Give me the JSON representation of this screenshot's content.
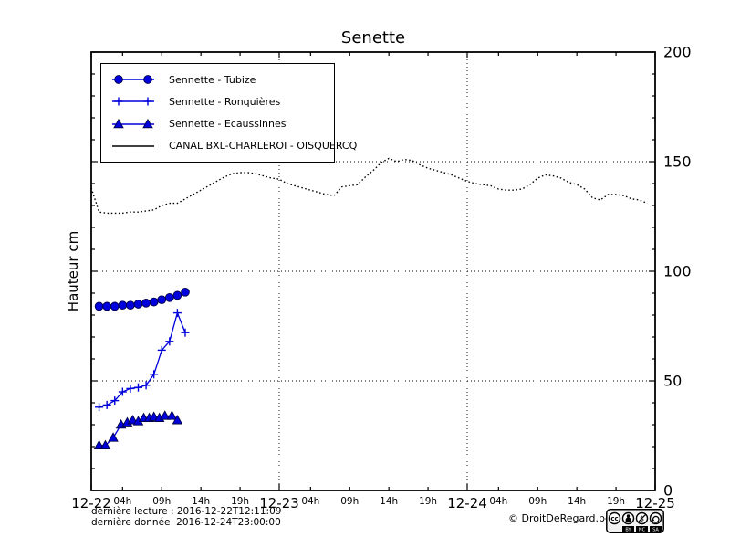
{
  "chart_data": {
    "type": "line",
    "title": "Senette",
    "ylabel": "Hauteur cm",
    "ylim": [
      0,
      200
    ],
    "x_range_hours": [
      0,
      72
    ],
    "grid": "dotted",
    "legend_position": "upper-left",
    "x_ticks_major": [
      {
        "h": 0,
        "label": "12-22"
      },
      {
        "h": 24,
        "label": "12-23"
      },
      {
        "h": 48,
        "label": "12-24"
      },
      {
        "h": 72,
        "label": "12-25"
      }
    ],
    "x_ticks_minor": [
      {
        "h": 4,
        "label": "04h"
      },
      {
        "h": 9,
        "label": "09h"
      },
      {
        "h": 14,
        "label": "14h"
      },
      {
        "h": 19,
        "label": "19h"
      },
      {
        "h": 28,
        "label": "04h"
      },
      {
        "h": 33,
        "label": "09h"
      },
      {
        "h": 38,
        "label": "14h"
      },
      {
        "h": 43,
        "label": "19h"
      },
      {
        "h": 52,
        "label": "04h"
      },
      {
        "h": 57,
        "label": "09h"
      },
      {
        "h": 62,
        "label": "14h"
      },
      {
        "h": 67,
        "label": "19h"
      }
    ],
    "y_ticks_major": [
      0,
      50,
      100,
      150,
      200
    ],
    "y_minor_step": 10,
    "grid_x_hours": [
      24,
      48
    ],
    "grid_y_values": [
      50,
      100,
      150
    ],
    "series": [
      {
        "name": "Sennette - Tubize",
        "color": "#0000dd",
        "marker": "circle",
        "line": "solid",
        "points": [
          [
            1,
            84
          ],
          [
            2,
            84
          ],
          [
            3,
            84
          ],
          [
            4,
            84.5
          ],
          [
            5,
            84.5
          ],
          [
            6,
            85
          ],
          [
            7,
            85.5
          ],
          [
            8,
            86
          ],
          [
            9,
            87
          ],
          [
            10,
            88
          ],
          [
            11,
            89
          ],
          [
            12,
            90.5
          ]
        ]
      },
      {
        "name": "Sennette - Ronquières",
        "color": "#0000dd",
        "marker": "plus",
        "line": "solid",
        "points": [
          [
            1,
            38
          ],
          [
            2,
            39
          ],
          [
            3,
            41
          ],
          [
            4,
            45
          ],
          [
            5,
            46.5
          ],
          [
            6,
            47
          ],
          [
            7,
            48
          ],
          [
            8,
            53
          ],
          [
            9,
            64
          ],
          [
            10,
            68
          ],
          [
            11,
            81
          ],
          [
            12,
            72
          ]
        ]
      },
      {
        "name": "Sennette - Ecaussinnes",
        "color": "#0000dd",
        "marker": "triangle",
        "line": "solid",
        "points": [
          [
            1,
            20.5
          ],
          [
            1.8,
            20.5
          ],
          [
            2.8,
            24
          ],
          [
            3.8,
            30
          ],
          [
            4.6,
            31
          ],
          [
            5.3,
            32
          ],
          [
            6,
            31.5
          ],
          [
            6.7,
            33
          ],
          [
            7.4,
            33
          ],
          [
            8,
            33.5
          ],
          [
            8.7,
            33
          ],
          [
            9.4,
            34
          ],
          [
            10.3,
            34
          ],
          [
            11,
            32
          ]
        ]
      },
      {
        "name": "CANAL BXL-CHARLEROI  - OISQUERCQ",
        "color": "#000000",
        "marker": "none",
        "line": "dotted",
        "points": [
          [
            0,
            138
          ],
          [
            1,
            127
          ],
          [
            2,
            126.5
          ],
          [
            3,
            126.5
          ],
          [
            4,
            126.5
          ],
          [
            5,
            127
          ],
          [
            6,
            127
          ],
          [
            7,
            127.5
          ],
          [
            8,
            128
          ],
          [
            9,
            130
          ],
          [
            10,
            131
          ],
          [
            11,
            131
          ],
          [
            12,
            133
          ],
          [
            13,
            135
          ],
          [
            14,
            137
          ],
          [
            15,
            139
          ],
          [
            16,
            141
          ],
          [
            17,
            143
          ],
          [
            18,
            144.5
          ],
          [
            19,
            145
          ],
          [
            20,
            145
          ],
          [
            21,
            144.5
          ],
          [
            22,
            143.5
          ],
          [
            23,
            142.5
          ],
          [
            24,
            142
          ],
          [
            25,
            140
          ],
          [
            26,
            139
          ],
          [
            27,
            138
          ],
          [
            28,
            137
          ],
          [
            29,
            136
          ],
          [
            30,
            135
          ],
          [
            31,
            134.5
          ],
          [
            32,
            138.5
          ],
          [
            33,
            139
          ],
          [
            34,
            139.5
          ],
          [
            35,
            143
          ],
          [
            36,
            146
          ],
          [
            37,
            149.5
          ],
          [
            38,
            151.5
          ],
          [
            39,
            150
          ],
          [
            40,
            151
          ],
          [
            41,
            150.5
          ],
          [
            42,
            148.5
          ],
          [
            43,
            147
          ],
          [
            44,
            146
          ],
          [
            45,
            145
          ],
          [
            46,
            144
          ],
          [
            47,
            142.5
          ],
          [
            48,
            141
          ],
          [
            49,
            140
          ],
          [
            50,
            139.5
          ],
          [
            51,
            139
          ],
          [
            52,
            137.5
          ],
          [
            53,
            137
          ],
          [
            54,
            137
          ],
          [
            55,
            137.5
          ],
          [
            56,
            139.5
          ],
          [
            57,
            142.5
          ],
          [
            58,
            144
          ],
          [
            59,
            143.5
          ],
          [
            60,
            142.5
          ],
          [
            61,
            140.5
          ],
          [
            62,
            139.5
          ],
          [
            63,
            137.5
          ],
          [
            64,
            133.5
          ],
          [
            65,
            132.5
          ],
          [
            66,
            135
          ],
          [
            67,
            135
          ],
          [
            68,
            134.5
          ],
          [
            69,
            133
          ],
          [
            70,
            132.5
          ],
          [
            71,
            131
          ]
        ]
      }
    ]
  },
  "footer": {
    "last_reading": "dernière lecture : 2016-12-22T12:11:09",
    "last_data": "dernière donnée  2016-12-24T23:00:00",
    "copyright": "© DroitDeRegard.be",
    "cc_labels": [
      "BY",
      "NC",
      "SA"
    ]
  },
  "colors": {
    "series_blue": "#0000dd",
    "canal_black": "#000000",
    "background": "#ffffff"
  }
}
